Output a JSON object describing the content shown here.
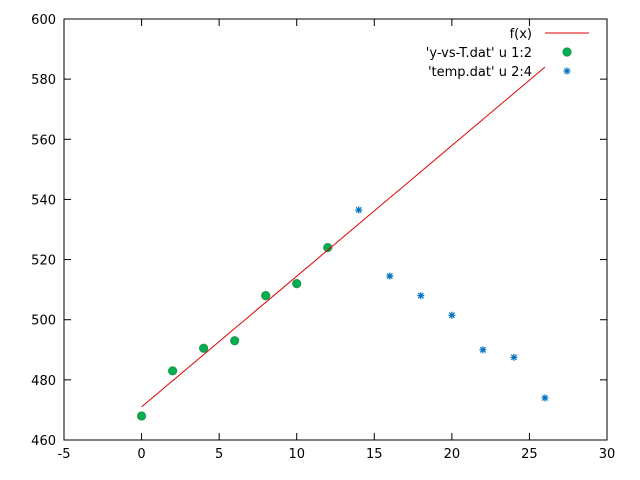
{
  "chart_data": {
    "type": "scatter",
    "xlim": [
      -5,
      30
    ],
    "ylim": [
      460,
      600
    ],
    "x_ticks": [
      -5,
      0,
      5,
      10,
      15,
      20,
      25,
      30
    ],
    "y_ticks": [
      460,
      480,
      500,
      520,
      540,
      560,
      580,
      600
    ],
    "legend_position": "top-right",
    "grid": false,
    "series": [
      {
        "name": "f(x)",
        "kind": "line",
        "color": "#e00000",
        "x": [
          0,
          26
        ],
        "y": [
          471,
          584
        ]
      },
      {
        "name": "'y-vs-T.dat' u 1:2",
        "kind": "points",
        "marker": "filled-circle",
        "color": "#00b050",
        "x": [
          0,
          2,
          4,
          6,
          8,
          10,
          12
        ],
        "y": [
          468,
          483,
          490.5,
          493,
          508,
          512,
          524
        ]
      },
      {
        "name": "'temp.dat' u 2:4",
        "kind": "points",
        "marker": "star",
        "color": "#0070c0",
        "x": [
          0,
          2,
          4,
          6,
          8,
          10,
          12,
          14,
          16,
          18,
          20,
          22,
          24,
          26
        ],
        "y": [
          468,
          483,
          490.5,
          493,
          508,
          512,
          524,
          536.5,
          514.5,
          508,
          501.5,
          490,
          487.5,
          474
        ]
      }
    ]
  }
}
